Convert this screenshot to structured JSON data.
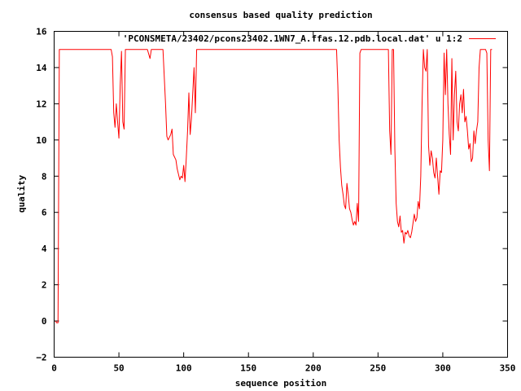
{
  "chart_data": {
    "type": "line",
    "title": "consensus based quality prediction",
    "xlabel": "sequence position",
    "ylabel": "quality",
    "xlim": [
      0,
      350
    ],
    "ylim": [
      -2,
      16
    ],
    "xticks": [
      0,
      50,
      100,
      150,
      200,
      250,
      300,
      350
    ],
    "yticks": [
      -2,
      0,
      2,
      4,
      6,
      8,
      10,
      12,
      14,
      16
    ],
    "grid": false,
    "legend_position": "top-right",
    "series": [
      {
        "name": "'PCONSMETA/23402/pcons23402.1WN7_A.ffas.12.pdb.local.dat' u 1:2",
        "color": "#ff0000",
        "points": [
          [
            1,
            0
          ],
          [
            2,
            -0.1
          ],
          [
            3,
            -0.1
          ],
          [
            4,
            15
          ],
          [
            44,
            15
          ],
          [
            45,
            14.6
          ],
          [
            46,
            11.5
          ],
          [
            47,
            10.7
          ],
          [
            48,
            12
          ],
          [
            49,
            11
          ],
          [
            50,
            10.1
          ],
          [
            51,
            13
          ],
          [
            52,
            14.9
          ],
          [
            53,
            11
          ],
          [
            54,
            10.6
          ],
          [
            55,
            15
          ],
          [
            72,
            15
          ],
          [
            74,
            14.5
          ],
          [
            75,
            15
          ],
          [
            84,
            15
          ],
          [
            86,
            12
          ],
          [
            87,
            10.2
          ],
          [
            88,
            10
          ],
          [
            90,
            10.3
          ],
          [
            91,
            10.6
          ],
          [
            92,
            9.2
          ],
          [
            94,
            8.9
          ],
          [
            95,
            8.4
          ],
          [
            96,
            8.1
          ],
          [
            97,
            7.8
          ],
          [
            98,
            8
          ],
          [
            99,
            7.9
          ],
          [
            100,
            8.6
          ],
          [
            101,
            7.7
          ],
          [
            102,
            9
          ],
          [
            103,
            10.5
          ],
          [
            104,
            12.6
          ],
          [
            105,
            10.3
          ],
          [
            106,
            11.2
          ],
          [
            107,
            12.6
          ],
          [
            108,
            14
          ],
          [
            109,
            11.5
          ],
          [
            110,
            15
          ],
          [
            218,
            15
          ],
          [
            219,
            13
          ],
          [
            220,
            10
          ],
          [
            221,
            8.5
          ],
          [
            222,
            7.5
          ],
          [
            223,
            7
          ],
          [
            224,
            6.4
          ],
          [
            225,
            6.2
          ],
          [
            226,
            7.6
          ],
          [
            227,
            7
          ],
          [
            228,
            6.2
          ],
          [
            229,
            6
          ],
          [
            230,
            5.6
          ],
          [
            231,
            5.3
          ],
          [
            232,
            5.5
          ],
          [
            233,
            5.3
          ],
          [
            234,
            6.5
          ],
          [
            235,
            5.5
          ],
          [
            236,
            14.8
          ],
          [
            237,
            15
          ],
          [
            258,
            15
          ],
          [
            259,
            10.5
          ],
          [
            260,
            9.2
          ],
          [
            261,
            15
          ],
          [
            262,
            15
          ],
          [
            263,
            9.5
          ],
          [
            264,
            6.5
          ],
          [
            265,
            5.5
          ],
          [
            266,
            5.2
          ],
          [
            267,
            5.8
          ],
          [
            268,
            4.9
          ],
          [
            269,
            5
          ],
          [
            270,
            4.3
          ],
          [
            271,
            4.9
          ],
          [
            272,
            4.8
          ],
          [
            273,
            5
          ],
          [
            274,
            4.7
          ],
          [
            275,
            4.6
          ],
          [
            276,
            4.9
          ],
          [
            277,
            5.4
          ],
          [
            278,
            5.9
          ],
          [
            279,
            5.5
          ],
          [
            280,
            5.7
          ],
          [
            281,
            6.6
          ],
          [
            282,
            6.2
          ],
          [
            283,
            8
          ],
          [
            284,
            12
          ],
          [
            285,
            15
          ],
          [
            286,
            14
          ],
          [
            287,
            13.8
          ],
          [
            288,
            15
          ],
          [
            289,
            9.7
          ],
          [
            290,
            8.6
          ],
          [
            291,
            9.4
          ],
          [
            292,
            9
          ],
          [
            293,
            8.2
          ],
          [
            294,
            7.9
          ],
          [
            295,
            9
          ],
          [
            296,
            8
          ],
          [
            297,
            7
          ],
          [
            298,
            8.3
          ],
          [
            299,
            8.2
          ],
          [
            300,
            10
          ],
          [
            301,
            14.8
          ],
          [
            302,
            12.5
          ],
          [
            303,
            15
          ],
          [
            304,
            12
          ],
          [
            305,
            10.3
          ],
          [
            306,
            9.2
          ],
          [
            307,
            14.5
          ],
          [
            308,
            10
          ],
          [
            309,
            12.5
          ],
          [
            310,
            13.8
          ],
          [
            311,
            11
          ],
          [
            312,
            10.5
          ],
          [
            313,
            12
          ],
          [
            314,
            12.5
          ],
          [
            315,
            11.5
          ],
          [
            316,
            12.8
          ],
          [
            317,
            11
          ],
          [
            318,
            11.3
          ],
          [
            319,
            10.5
          ],
          [
            320,
            9.5
          ],
          [
            321,
            9.8
          ],
          [
            322,
            8.8
          ],
          [
            323,
            9
          ],
          [
            324,
            10.5
          ],
          [
            325,
            9.8
          ],
          [
            326,
            10.5
          ],
          [
            327,
            11
          ],
          [
            328,
            14
          ],
          [
            329,
            15
          ],
          [
            333,
            15
          ],
          [
            334,
            14.8
          ],
          [
            335,
            10
          ],
          [
            336,
            8.3
          ],
          [
            337,
            15
          ],
          [
            338,
            15
          ]
        ]
      }
    ]
  }
}
